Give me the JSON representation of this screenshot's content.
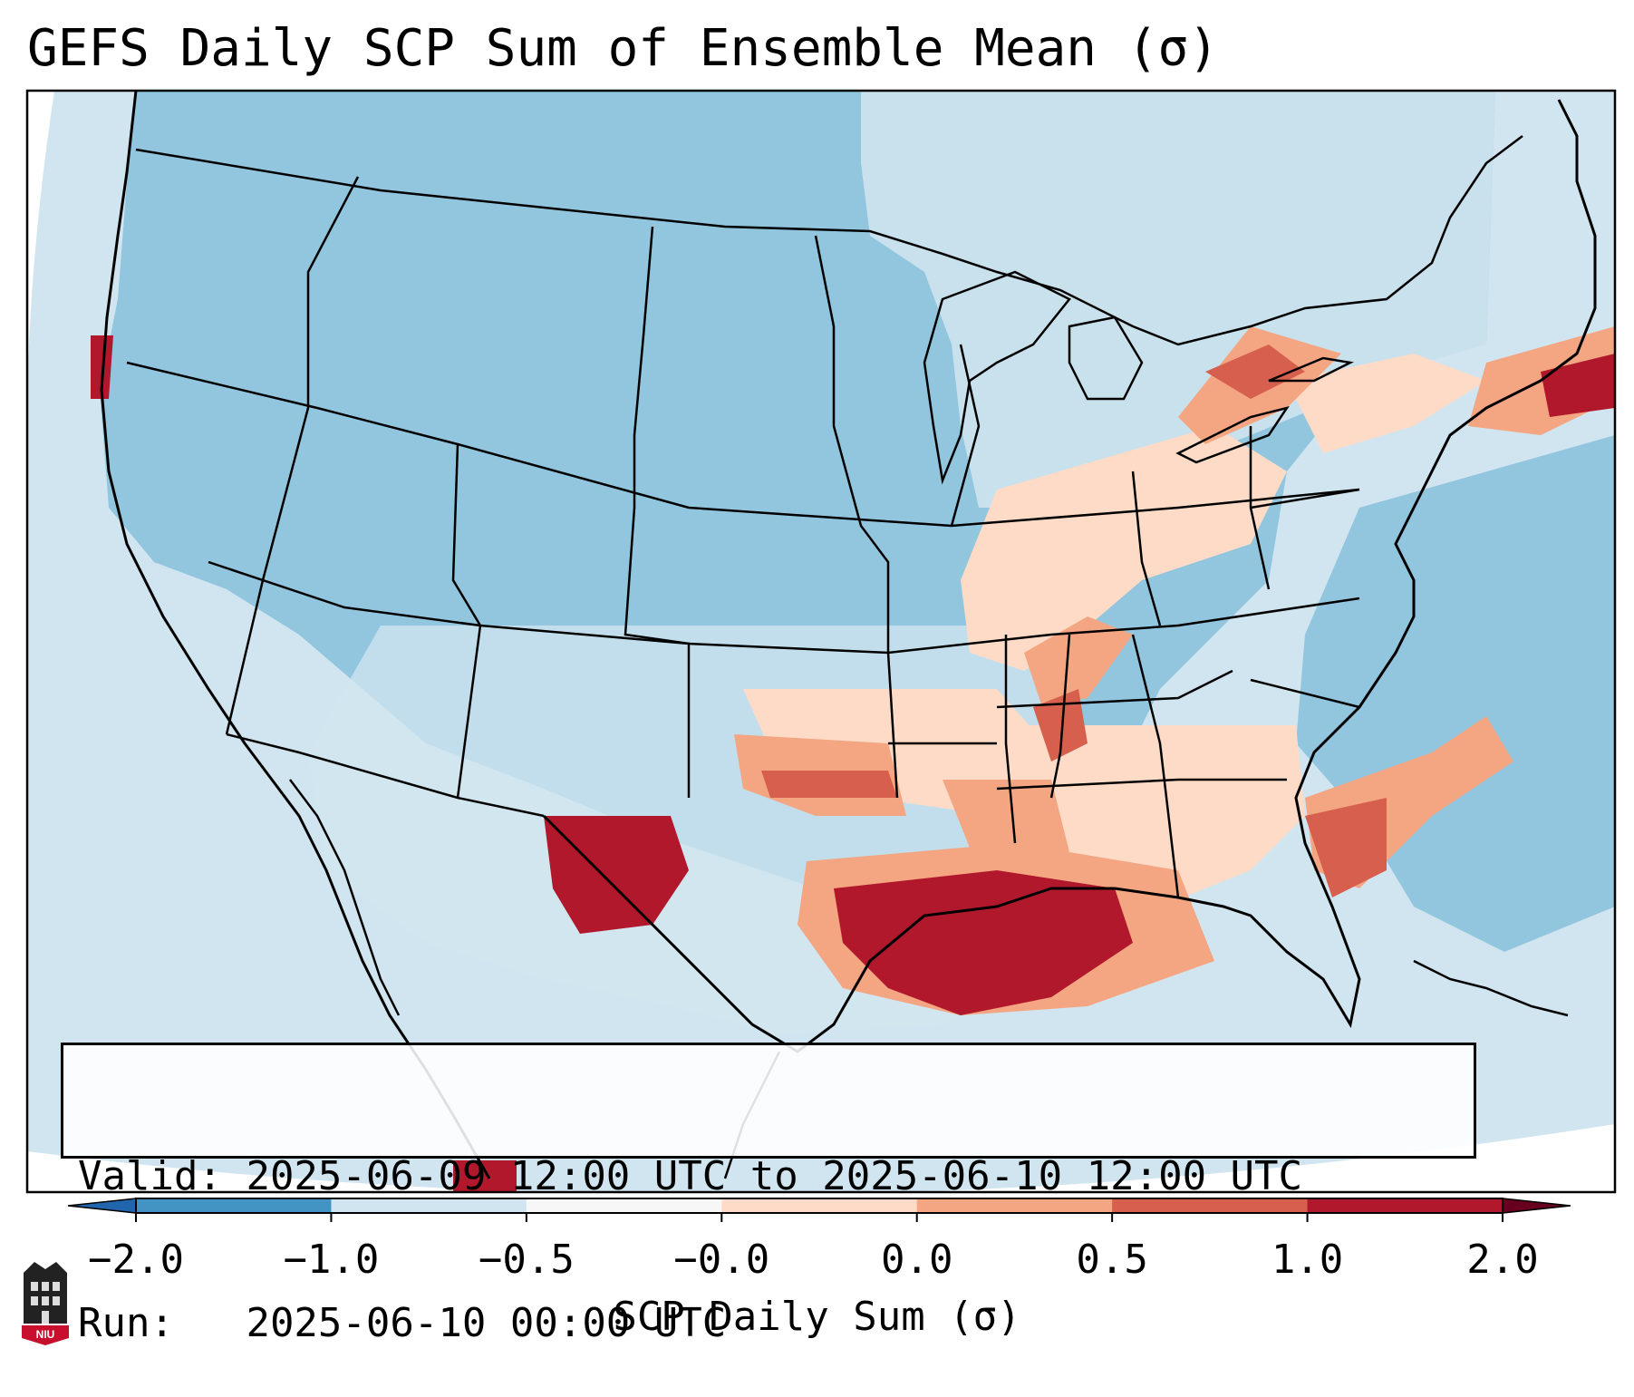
{
  "title": "GEFS Daily SCP Sum of Ensemble Mean (σ)",
  "info": {
    "valid_label": "Valid:",
    "valid_value": "2025-06-09 12:00 UTC to 2025-06-10 12:00 UTC",
    "run_label": "Run:",
    "run_value": "2025-06-10 00:00 UTC"
  },
  "colorbar": {
    "label": "SCP Daily Sum (σ)",
    "ticks": [
      "−2.0",
      "−1.0",
      "−0.5",
      "−0.0",
      "0.0",
      "0.5",
      "1.0",
      "2.0"
    ],
    "colors": [
      "#4393c3",
      "#92c5de",
      "#d1e5f0",
      "#f7f7f7",
      "#fddbc7",
      "#f4a582",
      "#d6604d",
      "#b2182b"
    ],
    "under_color": "#2166ac",
    "over_color": "#67001f"
  },
  "legend_colors": {
    "background_ocean": "#d1e5f0",
    "land_base": "#92c5de",
    "high": "#b2182b",
    "mid": "#d6604d",
    "low": "#f4a582",
    "weak": "#fddbc7",
    "border": "#000000"
  },
  "logo": {
    "name": "niu-icon",
    "text": "NIU"
  }
}
